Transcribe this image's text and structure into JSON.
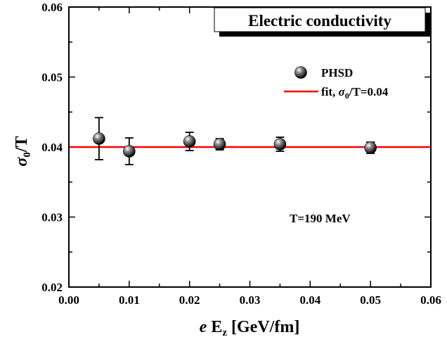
{
  "chart_data": {
    "type": "scatter",
    "title": "Electric conductivity",
    "xlabel": {
      "italic": "e",
      "main": " E",
      "sub": "z",
      "rest": " [GeV/fm]"
    },
    "ylabel": {
      "main": "σ",
      "sub": "0",
      "rest": "/T"
    },
    "xlim": [
      0.0,
      0.06
    ],
    "ylim": [
      0.02,
      0.06
    ],
    "x_ticks": [
      0.0,
      0.01,
      0.02,
      0.03,
      0.04,
      0.05,
      0.06
    ],
    "x_tick_labels": [
      "0.00",
      "0.01",
      "0.02",
      "0.03",
      "0.04",
      "0.05",
      "0.06"
    ],
    "y_ticks": [
      0.02,
      0.03,
      0.04,
      0.05,
      0.06
    ],
    "y_tick_labels": [
      "0.02",
      "0.03",
      "0.04",
      "0.05",
      "0.06"
    ],
    "series": [
      {
        "name": "PHSD",
        "marker": "sphere",
        "color": "#000000",
        "points": [
          {
            "x": 0.005,
            "y": 0.0412,
            "err": 0.003
          },
          {
            "x": 0.01,
            "y": 0.0394,
            "err": 0.0019
          },
          {
            "x": 0.02,
            "y": 0.0408,
            "err": 0.0013
          },
          {
            "x": 0.025,
            "y": 0.0404,
            "err": 0.0008
          },
          {
            "x": 0.035,
            "y": 0.0404,
            "err": 0.001
          },
          {
            "x": 0.05,
            "y": 0.0399,
            "err": 0.0008
          }
        ]
      }
    ],
    "fit_line": {
      "y": 0.04,
      "color": "#ff0000",
      "legend": {
        "prefix": "fit, ",
        "main": "σ",
        "sub": "0",
        "rest": "/T=0.04"
      }
    },
    "legend_position": "top-right",
    "annotation": "T=190 MeV",
    "grid": false
  }
}
